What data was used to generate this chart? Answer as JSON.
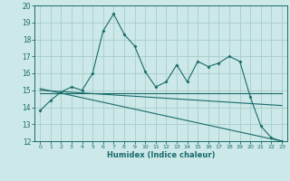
{
  "title": "",
  "xlabel": "Humidex (Indice chaleur)",
  "bg_color": "#cce8e8",
  "grid_color": "#aacccc",
  "line_color": "#1a6b6b",
  "xlim": [
    -0.5,
    23.5
  ],
  "ylim": [
    12,
    20
  ],
  "xticks": [
    0,
    1,
    2,
    3,
    4,
    5,
    6,
    7,
    8,
    9,
    10,
    11,
    12,
    13,
    14,
    15,
    16,
    17,
    18,
    19,
    20,
    21,
    22,
    23
  ],
  "yticks": [
    12,
    13,
    14,
    15,
    16,
    17,
    18,
    19,
    20
  ],
  "series": [
    {
      "x": [
        0,
        1,
        2,
        3,
        4,
        5,
        6,
        7,
        8,
        9,
        10,
        11,
        12,
        13,
        14,
        15,
        16,
        17,
        18,
        19,
        20,
        21,
        22,
        23
      ],
      "y": [
        13.8,
        14.4,
        14.9,
        15.2,
        15.0,
        16.0,
        18.5,
        19.5,
        18.3,
        17.6,
        16.1,
        15.2,
        15.5,
        16.5,
        15.5,
        16.7,
        16.4,
        16.6,
        17.0,
        16.7,
        14.6,
        12.9,
        12.2,
        12.0
      ],
      "marker": true,
      "linestyle": "-"
    },
    {
      "x": [
        0,
        23
      ],
      "y": [
        14.85,
        14.85
      ],
      "marker": false,
      "linestyle": "-"
    },
    {
      "x": [
        0,
        23
      ],
      "y": [
        15.0,
        14.1
      ],
      "marker": false,
      "linestyle": "-"
    },
    {
      "x": [
        0,
        23
      ],
      "y": [
        15.1,
        12.0
      ],
      "marker": false,
      "linestyle": "-"
    }
  ]
}
